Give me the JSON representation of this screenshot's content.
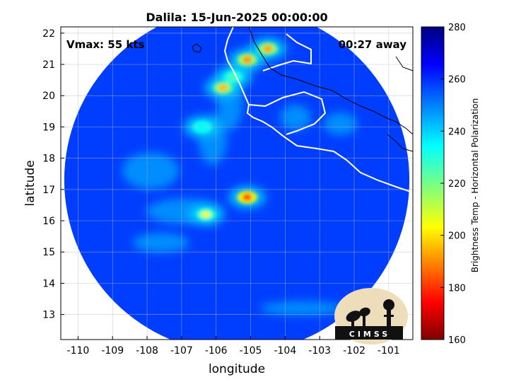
{
  "chart_data": {
    "type": "heatmap",
    "title": "Dalila: 15-Jun-2025 00:00:00",
    "xlabel": "longitude",
    "ylabel": "latitude",
    "xlim": [
      -110.5,
      -100.3
    ],
    "ylim": [
      12.2,
      22.2
    ],
    "x_ticks": [
      "-110",
      "-109",
      "-108",
      "-107",
      "-106",
      "-105",
      "-104",
      "-103",
      "-102",
      "-101"
    ],
    "y_ticks": [
      "13",
      "14",
      "15",
      "16",
      "17",
      "18",
      "19",
      "20",
      "21",
      "22"
    ],
    "grid": true,
    "annotations": {
      "vmax": "Vmax: 55 kts",
      "time_away": "00:27 away"
    },
    "colorbar": {
      "label": "Brightness Temp - Horizontal Polarization",
      "range": [
        160,
        280
      ],
      "ticks": [
        "280",
        "260",
        "240",
        "220",
        "200",
        "180",
        "160"
      ],
      "colormap": "jet"
    },
    "field_center_deg": [
      -105.4,
      17.3
    ],
    "field_radius_deg": 5.0,
    "background_tb": 268,
    "features": [
      {
        "name": "core",
        "lon": -105.1,
        "lat": 16.75,
        "min_tb": 178
      },
      {
        "name": "band-south-west",
        "lon": -106.3,
        "lat": 16.2,
        "min_tb": 205
      },
      {
        "name": "band-north-1",
        "lon": -105.8,
        "lat": 20.25,
        "min_tb": 195
      },
      {
        "name": "band-north-2",
        "lon": -105.5,
        "lat": 20.6,
        "min_tb": 225
      },
      {
        "name": "band-north-3",
        "lon": -105.1,
        "lat": 21.15,
        "min_tb": 190
      },
      {
        "name": "band-north-4",
        "lon": -104.5,
        "lat": 21.5,
        "min_tb": 192
      },
      {
        "name": "band-mid",
        "lon": -106.4,
        "lat": 19.0,
        "min_tb": 235
      }
    ],
    "logo_text": "CIMSS"
  }
}
